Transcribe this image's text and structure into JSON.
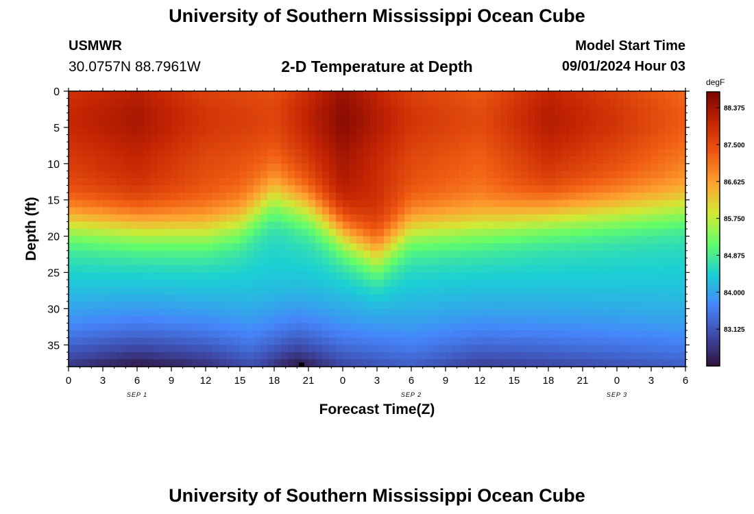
{
  "header": {
    "title": "University of Southern Mississippi Ocean Cube",
    "station": "USMWR",
    "coordinates": "30.0757N  88.7961W",
    "subtitle": "2-D Temperature at Depth",
    "model_label": "Model Start Time",
    "model_time": "09/01/2024 Hour 03"
  },
  "footer": {
    "title": "University of Southern Mississippi Ocean Cube"
  },
  "chart_data": {
    "type": "heatmap",
    "title": "2-D Temperature at Depth",
    "xlabel": "Forecast Time(Z)",
    "ylabel": "Depth (ft)",
    "x_tick_labels": [
      "0",
      "3",
      "6",
      "9",
      "12",
      "15",
      "18",
      "21",
      "0",
      "3",
      "6",
      "9",
      "12",
      "15",
      "18",
      "21",
      "0",
      "3",
      "6"
    ],
    "x_range_hours": [
      0,
      54
    ],
    "date_labels": [
      {
        "label": "SEP 1",
        "hour": 6
      },
      {
        "label": "SEP 2",
        "hour": 30
      },
      {
        "label": "SEP 3",
        "hour": 48
      }
    ],
    "y_tick_labels": [
      "0",
      "5",
      "10",
      "15",
      "20",
      "25",
      "30",
      "35"
    ],
    "y_ticks_ft": [
      0,
      5,
      10,
      15,
      20,
      25,
      30,
      35
    ],
    "y_range_ft": [
      0,
      38
    ],
    "colorbar": {
      "unit": "degF",
      "min": 82.25,
      "max": 88.75,
      "ticks": [
        "88.375",
        "87.500",
        "86.625",
        "85.750",
        "84.875",
        "84.000",
        "83.125"
      ],
      "tick_values": [
        88.375,
        87.5,
        86.625,
        85.75,
        84.875,
        84.0,
        83.125
      ],
      "colors": [
        "#30123b",
        "#3e4aa8",
        "#4686fb",
        "#1bcfd4",
        "#62fc6b",
        "#d2e935",
        "#fea331",
        "#ef5911",
        "#c42503",
        "#7a0403"
      ]
    },
    "surface_temp_degF_by_hour": [
      {
        "hour": 0,
        "value": 87.8
      },
      {
        "hour": 6,
        "value": 88.1
      },
      {
        "hour": 12,
        "value": 87.6
      },
      {
        "hour": 18,
        "value": 87.4
      },
      {
        "hour": 24,
        "value": 88.4
      },
      {
        "hour": 30,
        "value": 87.6
      },
      {
        "hour": 36,
        "value": 87.3
      },
      {
        "hour": 42,
        "value": 88.0
      },
      {
        "hour": 48,
        "value": 87.6
      },
      {
        "hour": 54,
        "value": 87.1
      }
    ],
    "thermocline_center_depth_ft_by_hour": [
      {
        "hour": 0,
        "value": 18.0
      },
      {
        "hour": 6,
        "value": 18.5
      },
      {
        "hour": 12,
        "value": 19.0
      },
      {
        "hour": 15,
        "value": 18.0
      },
      {
        "hour": 18,
        "value": 14.5
      },
      {
        "hour": 21,
        "value": 16.0
      },
      {
        "hour": 24,
        "value": 19.5
      },
      {
        "hour": 27,
        "value": 22.5
      },
      {
        "hour": 30,
        "value": 19.0
      },
      {
        "hour": 36,
        "value": 18.5
      },
      {
        "hour": 42,
        "value": 17.0
      },
      {
        "hour": 48,
        "value": 16.5
      },
      {
        "hour": 54,
        "value": 16.0
      }
    ],
    "bottom_temp_degF_by_hour": [
      {
        "hour": 0,
        "value": 82.7
      },
      {
        "hour": 6,
        "value": 82.3
      },
      {
        "hour": 12,
        "value": 82.6
      },
      {
        "hour": 16,
        "value": 83.0
      },
      {
        "hour": 20,
        "value": 82.3
      },
      {
        "hour": 24,
        "value": 82.9
      },
      {
        "hour": 30,
        "value": 83.2
      },
      {
        "hour": 36,
        "value": 82.8
      },
      {
        "hour": 42,
        "value": 82.9
      },
      {
        "hour": 54,
        "value": 83.2
      }
    ]
  }
}
